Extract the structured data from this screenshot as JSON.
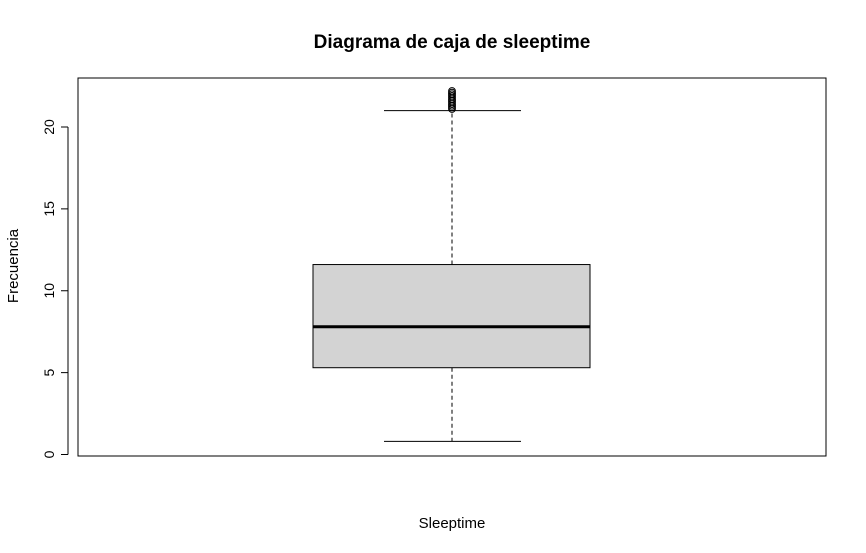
{
  "chart_data": {
    "type": "boxplot",
    "title": "Diagrama de caja de sleeptime",
    "xlabel": "Sleeptime",
    "ylabel": "Frecuencia",
    "ylim": [
      0,
      23
    ],
    "yticks": [
      0,
      5,
      10,
      15,
      20
    ],
    "box": {
      "whisker_low": 0.8,
      "q1": 5.3,
      "median": 7.8,
      "q3": 11.6,
      "whisker_high": 21.0,
      "outliers": [
        21.1,
        21.2,
        21.3,
        21.4,
        21.5,
        21.6,
        21.7,
        21.8,
        21.9,
        22.0,
        22.1,
        22.2
      ]
    },
    "colors": {
      "box_fill": "#d3d3d3",
      "stroke": "#000000"
    }
  }
}
